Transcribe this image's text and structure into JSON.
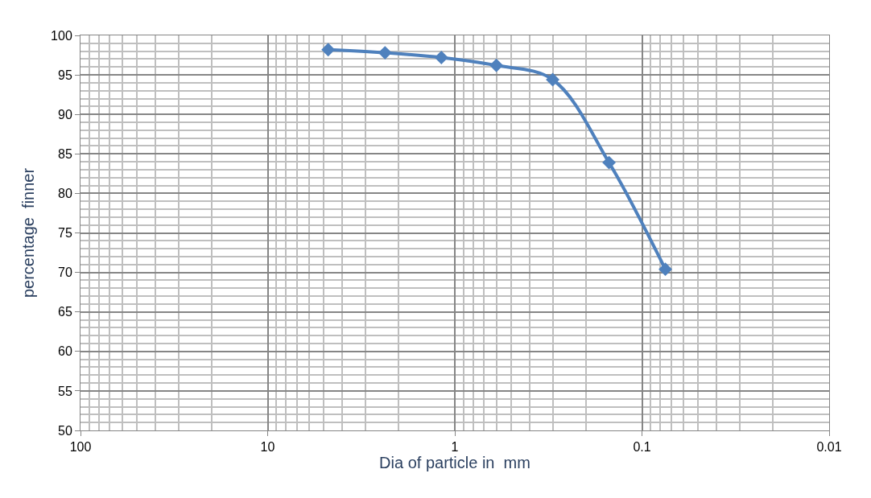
{
  "chart_data": {
    "type": "line",
    "xlabel": "Dia of particle in  mm",
    "ylabel": "percentage  finner",
    "x": [
      4.75,
      2.36,
      1.18,
      0.6,
      0.3,
      0.15,
      0.075
    ],
    "series": [
      {
        "color": "#4f81bd",
        "values": [
          98.2,
          97.8,
          97.2,
          96.2,
          94.4,
          83.9,
          70.4
        ]
      }
    ],
    "log": "x",
    "xlim": [
      100,
      0.01
    ],
    "xticks": [
      100,
      10,
      1,
      0.1,
      0.01
    ],
    "ylim": [
      50,
      100
    ],
    "yticks": [
      50,
      55,
      60,
      65,
      70,
      75,
      80,
      85,
      90,
      95,
      100
    ],
    "grid": true,
    "marker": "diamond",
    "line_style": "solid",
    "legend": false
  }
}
